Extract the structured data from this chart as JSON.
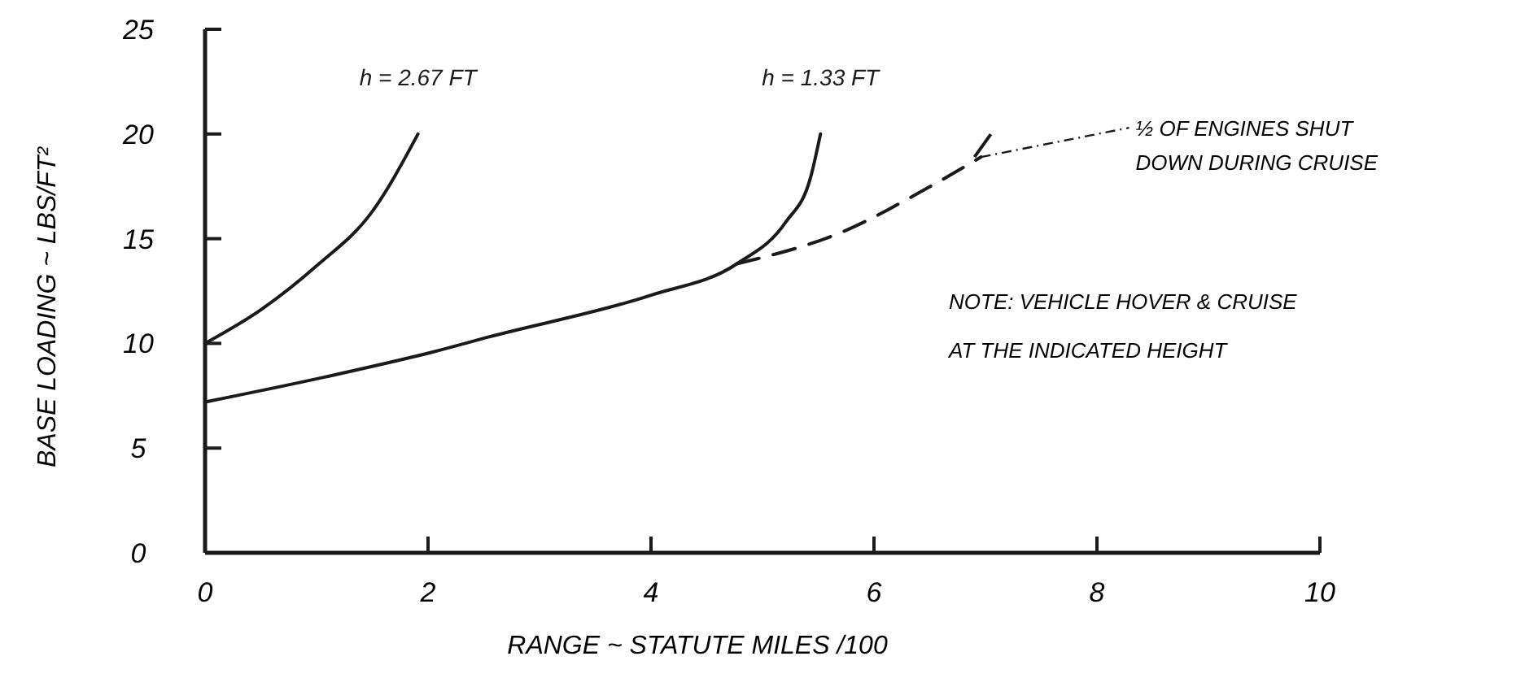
{
  "chart_data": {
    "type": "line",
    "xlabel": "RANGE ~ STATUTE MILES /100",
    "ylabel": "BASE LOADING ~ LBS/FT²",
    "xlim": [
      0,
      10
    ],
    "ylim": [
      0,
      25
    ],
    "xticks": [
      0,
      2,
      4,
      6,
      8,
      10
    ],
    "yticks": [
      0,
      5,
      10,
      15,
      20,
      25
    ],
    "series": [
      {
        "name": "h = 2.67 FT",
        "color": "#1a1a1a",
        "line_style": "solid",
        "x": [
          0,
          0.5,
          1.0,
          1.5,
          1.91
        ],
        "values": [
          10,
          11.6,
          13.7,
          16.3,
          20
        ]
      },
      {
        "name": "h = 1.33 FT",
        "color": "#1a1a1a",
        "line_style": "solid",
        "x": [
          0,
          1.08,
          2.05,
          2.54,
          4.0,
          4.77,
          5.21,
          5.43,
          5.52
        ],
        "values": [
          7.2,
          8.4,
          9.6,
          10.3,
          12.3,
          13.8,
          15.8,
          17.9,
          20
        ]
      },
      {
        "color": "#1a1a1a",
        "line_style": "dashed",
        "x": [
          4.77,
          5.75,
          6.44,
          6.96
        ],
        "values": [
          13.8,
          15.4,
          17.3,
          18.9
        ]
      }
    ],
    "annotations": [
      {
        "text": "½ OF ENGINES SHUT DOWN DURING CRUISE",
        "x": 6.96,
        "y": 18.9
      },
      "NOTE: VEHICLE HOVER & CRUISE AT THE INDICATED HEIGHT"
    ]
  }
}
